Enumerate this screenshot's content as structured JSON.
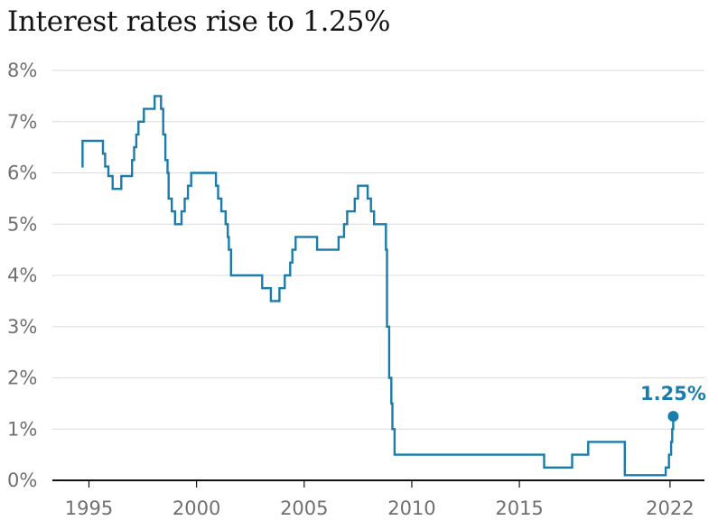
{
  "title": "Interest rates rise to 1.25%",
  "chart_data": {
    "type": "line",
    "title": "Interest rates rise to 1.25%",
    "xlabel": "",
    "ylabel": "",
    "xlim": [
      1993.3,
      2023.6
    ],
    "ylim": [
      0,
      8
    ],
    "y_ticks": [
      0,
      1,
      2,
      3,
      4,
      5,
      6,
      7,
      8
    ],
    "y_tick_labels": [
      "0%",
      "1%",
      "2%",
      "3%",
      "4%",
      "5%",
      "6%",
      "7%",
      "8%"
    ],
    "x_ticks": [
      1995,
      2000,
      2005,
      2010,
      2015,
      2022
    ],
    "x_tick_labels": [
      "1995",
      "2000",
      "2005",
      "2010",
      "2015",
      "2022"
    ],
    "grid": "horizontal",
    "line_color": "#197caa",
    "annotation": {
      "text": "1.25%",
      "x": 2022.15,
      "y": 1.25
    },
    "series": [
      {
        "step": true,
        "points": [
          [
            1994.65,
            6.125
          ],
          [
            1994.7,
            6.625
          ],
          [
            1995.6,
            6.625
          ],
          [
            1995.65,
            6.375
          ],
          [
            1995.75,
            6.125
          ],
          [
            1995.9,
            5.9375
          ],
          [
            1996.1,
            5.6875
          ],
          [
            1996.5,
            5.9375
          ],
          [
            1997.0,
            6.25
          ],
          [
            1997.1,
            6.5
          ],
          [
            1997.2,
            6.75
          ],
          [
            1997.3,
            7.0
          ],
          [
            1997.55,
            7.25
          ],
          [
            1998.05,
            7.5
          ],
          [
            1998.35,
            7.25
          ],
          [
            1998.45,
            6.75
          ],
          [
            1998.55,
            6.25
          ],
          [
            1998.65,
            6.0
          ],
          [
            1998.7,
            5.5
          ],
          [
            1998.85,
            5.25
          ],
          [
            1999.0,
            5.0
          ],
          [
            1999.3,
            5.25
          ],
          [
            1999.45,
            5.5
          ],
          [
            1999.6,
            5.75
          ],
          [
            1999.75,
            6.0
          ],
          [
            2000.7,
            6.0
          ],
          [
            2000.9,
            5.75
          ],
          [
            2001.0,
            5.5
          ],
          [
            2001.15,
            5.25
          ],
          [
            2001.35,
            5.0
          ],
          [
            2001.45,
            4.75
          ],
          [
            2001.5,
            4.5
          ],
          [
            2001.6,
            4.0
          ],
          [
            2002.85,
            4.0
          ],
          [
            2003.05,
            3.75
          ],
          [
            2003.45,
            3.5
          ],
          [
            2003.85,
            3.75
          ],
          [
            2004.1,
            4.0
          ],
          [
            2004.35,
            4.25
          ],
          [
            2004.45,
            4.5
          ],
          [
            2004.6,
            4.75
          ],
          [
            2005.6,
            4.5
          ],
          [
            2006.6,
            4.75
          ],
          [
            2006.85,
            5.0
          ],
          [
            2007.0,
            5.25
          ],
          [
            2007.35,
            5.5
          ],
          [
            2007.5,
            5.75
          ],
          [
            2007.95,
            5.5
          ],
          [
            2008.1,
            5.25
          ],
          [
            2008.25,
            5.0
          ],
          [
            2008.8,
            4.5
          ],
          [
            2008.85,
            3.0
          ],
          [
            2008.95,
            2.0
          ],
          [
            2009.05,
            1.5
          ],
          [
            2009.1,
            1.0
          ],
          [
            2009.2,
            0.5
          ],
          [
            2016.1,
            0.5
          ],
          [
            2016.15,
            0.25
          ],
          [
            2017.4,
            0.25
          ],
          [
            2017.45,
            0.5
          ],
          [
            2018.15,
            0.5
          ],
          [
            2018.2,
            0.75
          ],
          [
            2019.85,
            0.75
          ],
          [
            2019.9,
            0.1
          ],
          [
            2021.7,
            0.1
          ],
          [
            2021.8,
            0.25
          ],
          [
            2021.95,
            0.5
          ],
          [
            2022.05,
            0.75
          ],
          [
            2022.1,
            1.0
          ],
          [
            2022.15,
            1.25
          ]
        ]
      }
    ]
  }
}
